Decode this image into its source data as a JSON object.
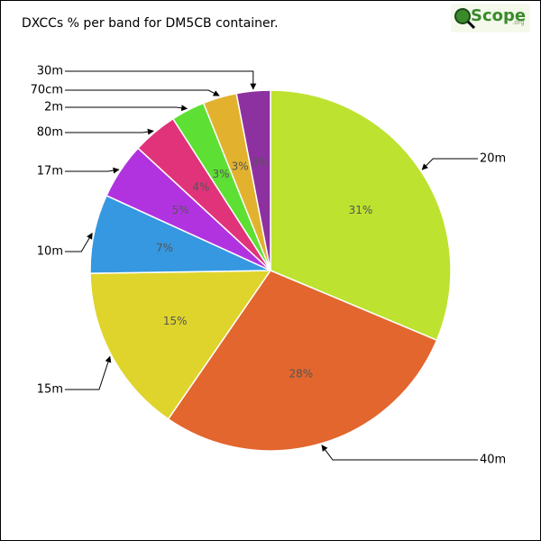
{
  "chart_data": {
    "type": "pie",
    "title": "DXCCs % per band for DM5CB container.",
    "logo": {
      "brand": "Scope",
      "suffix": ".org"
    },
    "categories": [
      "20m",
      "40m",
      "15m",
      "10m",
      "17m",
      "80m",
      "2m",
      "70cm",
      "30m"
    ],
    "values": [
      31,
      28,
      15,
      7,
      5,
      4,
      3,
      3,
      3
    ],
    "value_labels": [
      "31%",
      "28%",
      "15%",
      "7%",
      "5%",
      "4%",
      "3%",
      "3%",
      "3%"
    ],
    "colors": [
      "#bde22f",
      "#e2662e",
      "#dfd42c",
      "#3598e0",
      "#b133e0",
      "#e0337a",
      "#5de033",
      "#e2b22f",
      "#8e31a0"
    ]
  }
}
